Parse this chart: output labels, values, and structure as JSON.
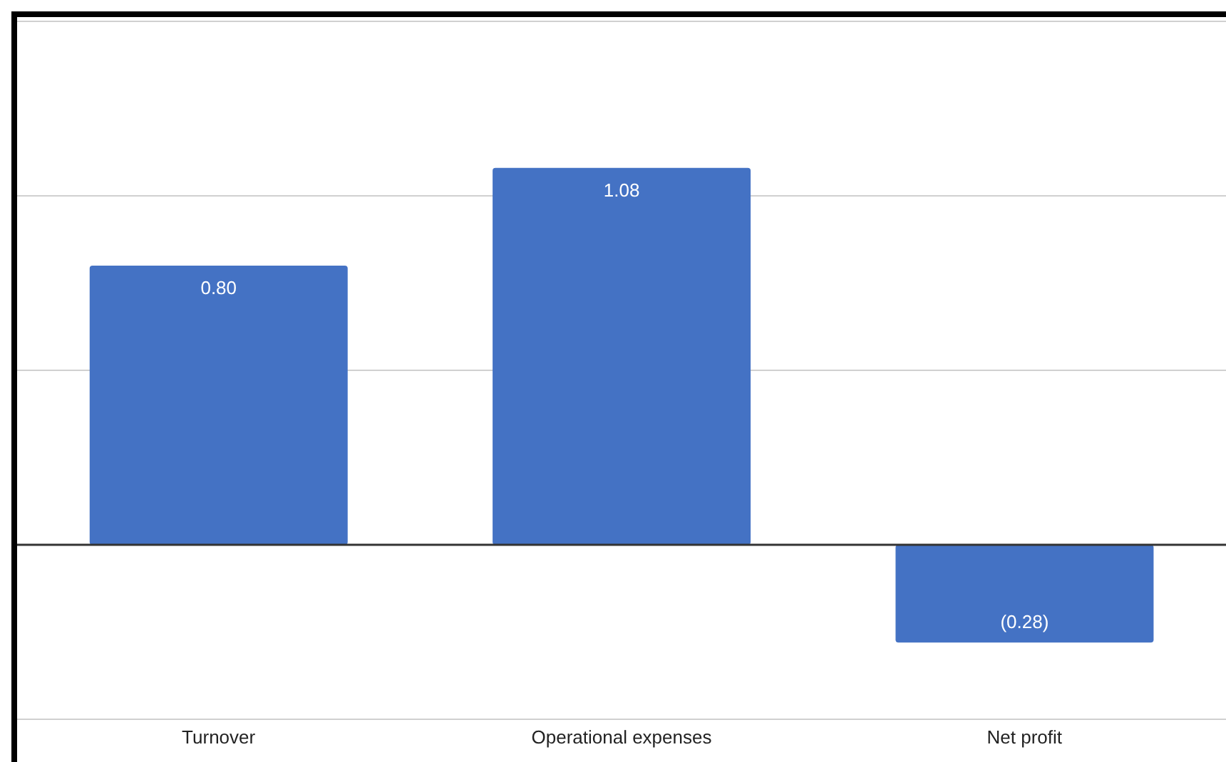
{
  "chart_data": {
    "type": "bar",
    "categories": [
      "Turnover",
      "Operational expenses",
      "Net profit"
    ],
    "values": [
      0.8,
      1.08,
      -0.28
    ],
    "color": "#4472c4",
    "value_labels": [
      "0.80",
      "1.08",
      "(0.28)"
    ],
    "ylim": [
      -0.5,
      1.5
    ],
    "yticks": [
      {
        "value": -0.5,
        "label": null
      },
      {
        "value": 0,
        "label": null
      },
      {
        "value": 0.5,
        "label": null
      },
      {
        "value": 1,
        "label": null
      },
      {
        "value": 1.5,
        "label": null
      }
    ],
    "grid": "y",
    "tick_labels": "x"
  }
}
